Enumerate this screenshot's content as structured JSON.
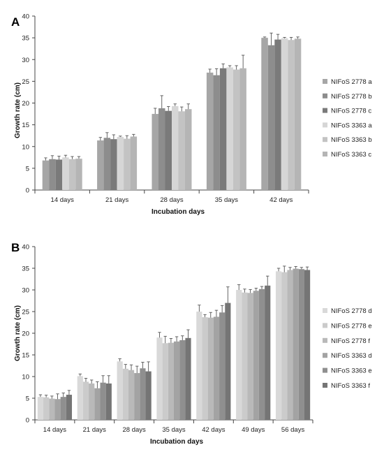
{
  "chart_data": [
    {
      "type": "bar",
      "panel_label": "A",
      "xlabel": "Incubation days",
      "ylabel": "Growth rate (cm)",
      "ylim": [
        0,
        40
      ],
      "yticks": [
        0,
        5,
        10,
        15,
        20,
        25,
        30,
        35,
        40
      ],
      "categories": [
        "14 days",
        "21 days",
        "28 days",
        "35 days",
        "42 days"
      ],
      "legend_position": "right",
      "error_bars": true,
      "series": [
        {
          "name": "NIFoS 2778 a",
          "color": "#a6a6a6",
          "values": [
            6.8,
            11.4,
            17.5,
            27.0,
            35.0
          ],
          "errors": [
            0.6,
            0.7,
            1.3,
            0.8,
            0.2
          ]
        },
        {
          "name": "NIFoS 2778 b",
          "color": "#8d8d8d",
          "values": [
            7.1,
            12.0,
            18.8,
            26.4,
            33.3
          ],
          "errors": [
            0.8,
            1.2,
            2.9,
            1.5,
            2.8
          ]
        },
        {
          "name": "NIFoS 2778 c",
          "color": "#7a7a7a",
          "values": [
            7.0,
            11.7,
            18.2,
            28.0,
            34.6
          ],
          "errors": [
            0.8,
            1.0,
            1.0,
            1.0,
            1.2
          ]
        },
        {
          "name": "NIFoS 3363 a",
          "color": "#d6d6d6",
          "values": [
            7.5,
            12.2,
            19.3,
            28.2,
            34.9
          ],
          "errors": [
            0.5,
            0.2,
            0.5,
            0.4,
            0.2
          ]
        },
        {
          "name": "NIFoS 3363 b",
          "color": "#c3c3c3",
          "values": [
            7.1,
            11.8,
            18.1,
            27.7,
            34.5
          ],
          "errors": [
            0.6,
            0.7,
            1.0,
            0.9,
            0.6
          ]
        },
        {
          "name": "NIFoS 3363 c",
          "color": "#b5b5b5",
          "values": [
            7.2,
            12.3,
            18.6,
            28.0,
            34.8
          ],
          "errors": [
            0.5,
            0.5,
            1.2,
            3.0,
            0.4
          ]
        }
      ]
    },
    {
      "type": "bar",
      "panel_label": "B",
      "xlabel": "Incubation days",
      "ylabel": "Growth rate (cm)",
      "ylim": [
        0,
        40
      ],
      "yticks": [
        0,
        5,
        10,
        15,
        20,
        25,
        30,
        35,
        40
      ],
      "categories": [
        "14 days",
        "21 days",
        "28 days",
        "35 days",
        "42 days",
        "49 days",
        "56 days"
      ],
      "legend_position": "right",
      "error_bars": true,
      "series": [
        {
          "name": "NIFoS 2778 d",
          "color": "#d9d9d9",
          "values": [
            5.3,
            10.1,
            13.5,
            19.0,
            25.0,
            30.0,
            34.3
          ],
          "errors": [
            0.5,
            0.5,
            0.6,
            1.2,
            1.5,
            1.2,
            0.7
          ]
        },
        {
          "name": "NIFoS 2778 e",
          "color": "#cbcbcb",
          "values": [
            5.2,
            8.8,
            11.8,
            17.7,
            23.7,
            29.4,
            34.1
          ],
          "errors": [
            0.5,
            0.8,
            1.0,
            1.6,
            0.6,
            0.8,
            1.4
          ]
        },
        {
          "name": "NIFoS 2778 f",
          "color": "#b9b9b9",
          "values": [
            4.9,
            8.4,
            11.5,
            17.8,
            23.6,
            29.3,
            34.6
          ],
          "errors": [
            0.6,
            0.8,
            1.2,
            1.0,
            1.2,
            0.8,
            0.6
          ]
        },
        {
          "name": "NIFoS 3363 d",
          "color": "#a3a3a3",
          "values": [
            4.8,
            7.3,
            10.8,
            18.1,
            23.8,
            29.8,
            34.9
          ],
          "errors": [
            1.2,
            1.5,
            1.6,
            1.1,
            1.5,
            0.6,
            0.5
          ]
        },
        {
          "name": "NIFoS 3363 e",
          "color": "#8f8f8f",
          "values": [
            5.3,
            8.6,
            11.9,
            18.4,
            24.8,
            30.2,
            34.8
          ],
          "errors": [
            0.9,
            1.6,
            1.4,
            1.0,
            1.6,
            0.6,
            0.4
          ]
        },
        {
          "name": "NIFoS 3363 f",
          "color": "#757575",
          "values": [
            5.8,
            8.4,
            11.2,
            18.9,
            27.0,
            31.0,
            34.6
          ],
          "errors": [
            1.0,
            1.8,
            2.2,
            1.9,
            3.7,
            2.2,
            0.7
          ]
        }
      ]
    }
  ]
}
